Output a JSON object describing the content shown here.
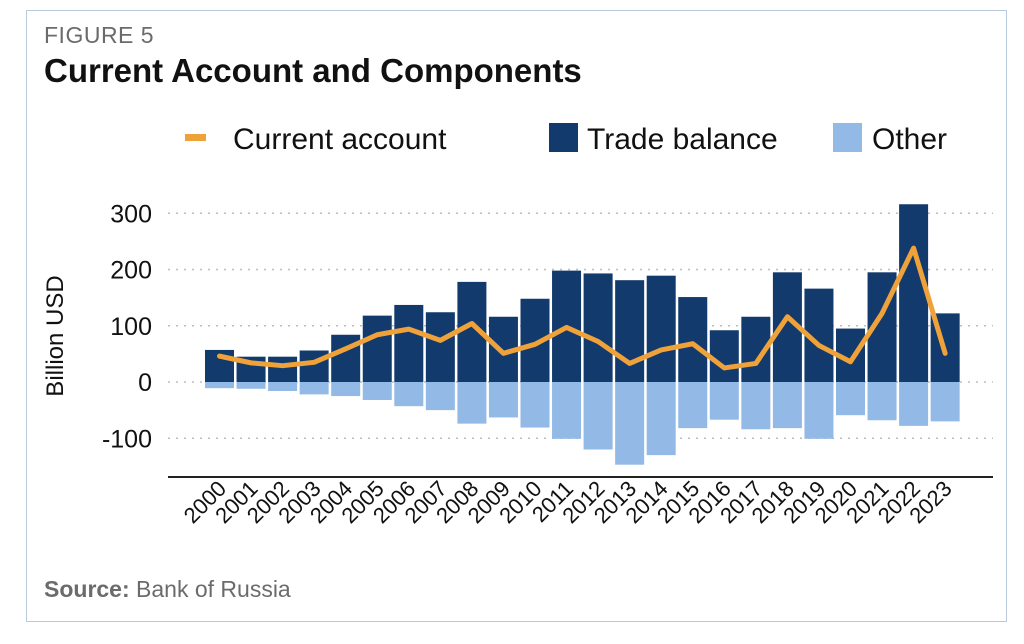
{
  "figure": {
    "label": "FIGURE 5",
    "title": "Current Account and Components",
    "source_prefix": "Source:",
    "source_text": "Bank of Russia"
  },
  "chart_data": {
    "type": "bar",
    "stacked": true,
    "ylabel": "Billion USD",
    "ylim": [
      -150,
      320
    ],
    "yticks": [
      -100,
      0,
      100,
      200,
      300
    ],
    "yticks_labels": [
      "-100",
      "0",
      "100",
      "200",
      "300"
    ],
    "grid": "horizontal-dotted",
    "legend_position": "top",
    "categories": [
      "2000",
      "2001",
      "2002",
      "2003",
      "2004",
      "2005",
      "2006",
      "2007",
      "2008",
      "2009",
      "2010",
      "2011",
      "2012",
      "2013",
      "2014",
      "2015",
      "2016",
      "2017",
      "2018",
      "2019",
      "2020",
      "2021",
      "2022",
      "2023"
    ],
    "series": [
      {
        "name": "Trade balance",
        "kind": "bar",
        "color": "#123a6d",
        "values": [
          57,
          45,
          45,
          56,
          84,
          118,
          137,
          124,
          178,
          116,
          148,
          198,
          193,
          181,
          189,
          151,
          92,
          116,
          195,
          166,
          95,
          195,
          316,
          122
        ]
      },
      {
        "name": "Other",
        "kind": "bar",
        "color": "#93b9e6",
        "values": [
          -11,
          -12,
          -16,
          -22,
          -25,
          -32,
          -43,
          -50,
          -74,
          -63,
          -81,
          -101,
          -120,
          -147,
          -130,
          -82,
          -67,
          -84,
          -82,
          -101,
          -59,
          -68,
          -78,
          -70
        ]
      },
      {
        "name": "Current account",
        "kind": "line",
        "color": "#f0a23a",
        "values": [
          46,
          34,
          29,
          35,
          59,
          84,
          94,
          74,
          104,
          51,
          67,
          97,
          72,
          33,
          57,
          68,
          25,
          33,
          116,
          65,
          36,
          122,
          238,
          51
        ]
      }
    ]
  }
}
